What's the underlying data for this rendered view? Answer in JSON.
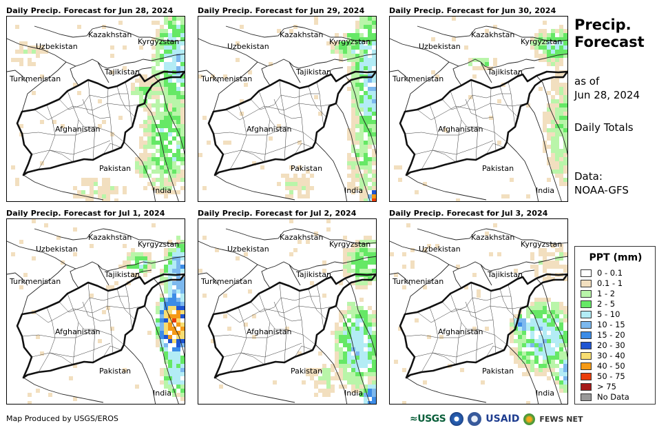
{
  "panels": [
    {
      "title": "Daily Precip. Forecast for Jun 28, 2024"
    },
    {
      "title": "Daily Precip. Forecast for Jun 29, 2024"
    },
    {
      "title": "Daily Precip. Forecast for Jun 30, 2024"
    },
    {
      "title": "Daily Precip. Forecast for Jul 1, 2024"
    },
    {
      "title": "Daily Precip. Forecast for Jul 2, 2024"
    },
    {
      "title": "Daily Precip. Forecast for Jul 3, 2024"
    }
  ],
  "map_labels": {
    "kazakhstan": "Kazakhstan",
    "kyrgyzstan": "Kyrgyzstan",
    "uzbekistan": "Uzbekistan",
    "tajikistan": "Tajikistan",
    "turkmenistan": "Turkmenistan",
    "afghanistan": "Afghanistan",
    "pakistan": "Pakistan",
    "india": "India"
  },
  "side": {
    "title_line1": "Precip.",
    "title_line2": "Forecast",
    "asof_line1": "as of",
    "asof_line2": "Jun 28, 2024",
    "totals": "Daily Totals",
    "data_line1": "Data:",
    "data_line2": "NOAA-GFS"
  },
  "legend": {
    "title": "PPT (mm)",
    "items": [
      {
        "label": "0 - 0.1",
        "color": "#ffffff"
      },
      {
        "label": "0.1 - 1",
        "color": "#f2dfbf"
      },
      {
        "label": "1 - 2",
        "color": "#b9f5a9"
      },
      {
        "label": "2 - 5",
        "color": "#66e866"
      },
      {
        "label": "5 - 10",
        "color": "#b3ecf5"
      },
      {
        "label": "10 - 15",
        "color": "#7cb8ee"
      },
      {
        "label": "15 - 20",
        "color": "#3d8ce6"
      },
      {
        "label": "20 - 30",
        "color": "#1f55d2"
      },
      {
        "label": "30 - 40",
        "color": "#f7dd72"
      },
      {
        "label": "40 - 50",
        "color": "#f59a17"
      },
      {
        "label": "50 - 75",
        "color": "#ea3d0c"
      },
      {
        "label": "> 75",
        "color": "#a51a1a"
      },
      {
        "label": "No Data",
        "color": "#999999"
      }
    ]
  },
  "footer": {
    "credit": "Map Produced by USGS/EROS",
    "logo_usgs": "≈USGS",
    "logo_usaid": "USAID",
    "logo_fews": "FEWS NET"
  }
}
